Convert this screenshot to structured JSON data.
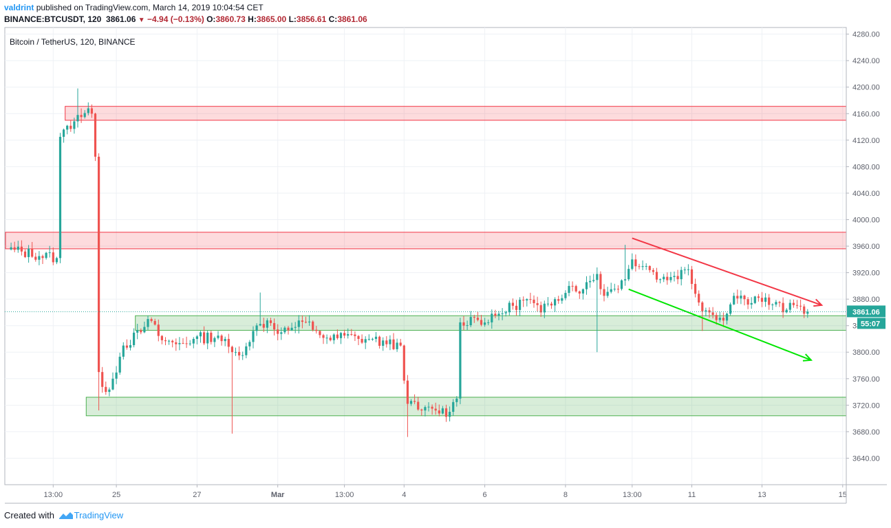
{
  "header": {
    "author": "valdrint",
    "published": "published on TradingView.com, March 14, 2019 10:04:54 CET",
    "symbol": "BINANCE:BTCUSDT, 120",
    "last": "3861.06",
    "change": "−4.94 (−0.13%)",
    "o_label": "O:",
    "o_value": "3860.73",
    "h_label": "H:",
    "h_value": "3865.00",
    "l_label": "L:",
    "l_value": "3856.61",
    "c_label": "C:",
    "c_value": "3861.06"
  },
  "chart_data": {
    "type": "candlestick",
    "title": "Bitcoin / TetherUS, 120, BINANCE",
    "ylim": [
      3600,
      4290
    ],
    "y_ticks": [
      4280,
      4240,
      4200,
      4160,
      4120,
      4080,
      4040,
      4000,
      3960,
      3920,
      3880,
      3840,
      3800,
      3760,
      3720,
      3680,
      3640
    ],
    "x_ticks": [
      "13:00",
      "25",
      "27",
      "Mar",
      "13:00",
      "4",
      "6",
      "8",
      "13:00",
      "11",
      "13",
      "15"
    ],
    "x_tick_index": [
      13,
      31,
      54,
      77,
      96,
      113,
      136,
      159,
      178,
      195,
      215,
      238
    ],
    "bar_count": 240,
    "anchors": [
      [
        0,
        3955
      ],
      [
        14,
        3942
      ],
      [
        15,
        4125
      ],
      [
        20,
        4158
      ],
      [
        24,
        4160
      ],
      [
        25,
        4095
      ],
      [
        26,
        3770
      ],
      [
        28,
        3740
      ],
      [
        30,
        3760
      ],
      [
        33,
        3810
      ],
      [
        38,
        3830
      ],
      [
        40,
        3850
      ],
      [
        44,
        3818
      ],
      [
        48,
        3812
      ],
      [
        53,
        3820
      ],
      [
        60,
        3825
      ],
      [
        64,
        3800
      ],
      [
        66,
        3795
      ],
      [
        70,
        3832
      ],
      [
        74,
        3848
      ],
      [
        78,
        3830
      ],
      [
        82,
        3838
      ],
      [
        85,
        3845
      ],
      [
        88,
        3832
      ],
      [
        92,
        3818
      ],
      [
        96,
        3825
      ],
      [
        100,
        3820
      ],
      [
        104,
        3820
      ],
      [
        108,
        3812
      ],
      [
        112,
        3810
      ],
      [
        114,
        3722
      ],
      [
        118,
        3712
      ],
      [
        122,
        3712
      ],
      [
        126,
        3710
      ],
      [
        128,
        3730
      ],
      [
        129,
        3845
      ],
      [
        133,
        3852
      ],
      [
        137,
        3845
      ],
      [
        140,
        3858
      ],
      [
        144,
        3870
      ],
      [
        148,
        3880
      ],
      [
        152,
        3860
      ],
      [
        156,
        3880
      ],
      [
        160,
        3900
      ],
      [
        164,
        3895
      ],
      [
        168,
        3918
      ],
      [
        170,
        3885
      ],
      [
        172,
        3895
      ],
      [
        176,
        3910
      ],
      [
        178,
        3940
      ],
      [
        182,
        3930
      ],
      [
        186,
        3910
      ],
      [
        190,
        3915
      ],
      [
        194,
        3925
      ],
      [
        197,
        3875
      ],
      [
        200,
        3860
      ],
      [
        203,
        3852
      ],
      [
        205,
        3858
      ],
      [
        207,
        3885
      ],
      [
        210,
        3880
      ],
      [
        214,
        3882
      ],
      [
        218,
        3872
      ],
      [
        222,
        3864
      ],
      [
        225,
        3870
      ],
      [
        228,
        3861.06
      ]
    ],
    "wicks": [
      {
        "i": 20,
        "high": 4198
      },
      {
        "i": 26,
        "low": 3712
      },
      {
        "i": 64,
        "low": 3677
      },
      {
        "i": 72,
        "high": 3890
      },
      {
        "i": 114,
        "low": 3672
      },
      {
        "i": 168,
        "low": 3800
      },
      {
        "i": 176,
        "high": 3962
      },
      {
        "i": 198,
        "low": 3832
      }
    ],
    "colors": {
      "up": "#26a69a",
      "down": "#ef5350",
      "last_price": "#26a69a"
    },
    "zones": [
      {
        "type": "resistance",
        "y_low": 4150,
        "y_high": 4171,
        "from_index": 17,
        "color": "#f23645"
      },
      {
        "type": "resistance",
        "y_low": 3956,
        "y_high": 3981,
        "from_index": 0,
        "color": "#f23645"
      },
      {
        "type": "support",
        "y_low": 3833,
        "y_high": 3855,
        "from_index": 37,
        "color": "#4caf50"
      },
      {
        "type": "support",
        "y_low": 3704,
        "y_high": 3732,
        "from_index": 23,
        "color": "#4caf50"
      }
    ],
    "trendlines": [
      {
        "color": "#f23645",
        "from": [
          178,
          3972
        ],
        "to": [
          232,
          3871
        ],
        "arrow": true
      },
      {
        "color": "#00e500",
        "from": [
          177,
          3895
        ],
        "to": [
          229,
          3788
        ],
        "arrow": true
      }
    ],
    "last_price_label": "3861.06",
    "countdown_label": "55:07"
  },
  "footer": {
    "created_with": "Created with",
    "brand": "TradingView"
  }
}
